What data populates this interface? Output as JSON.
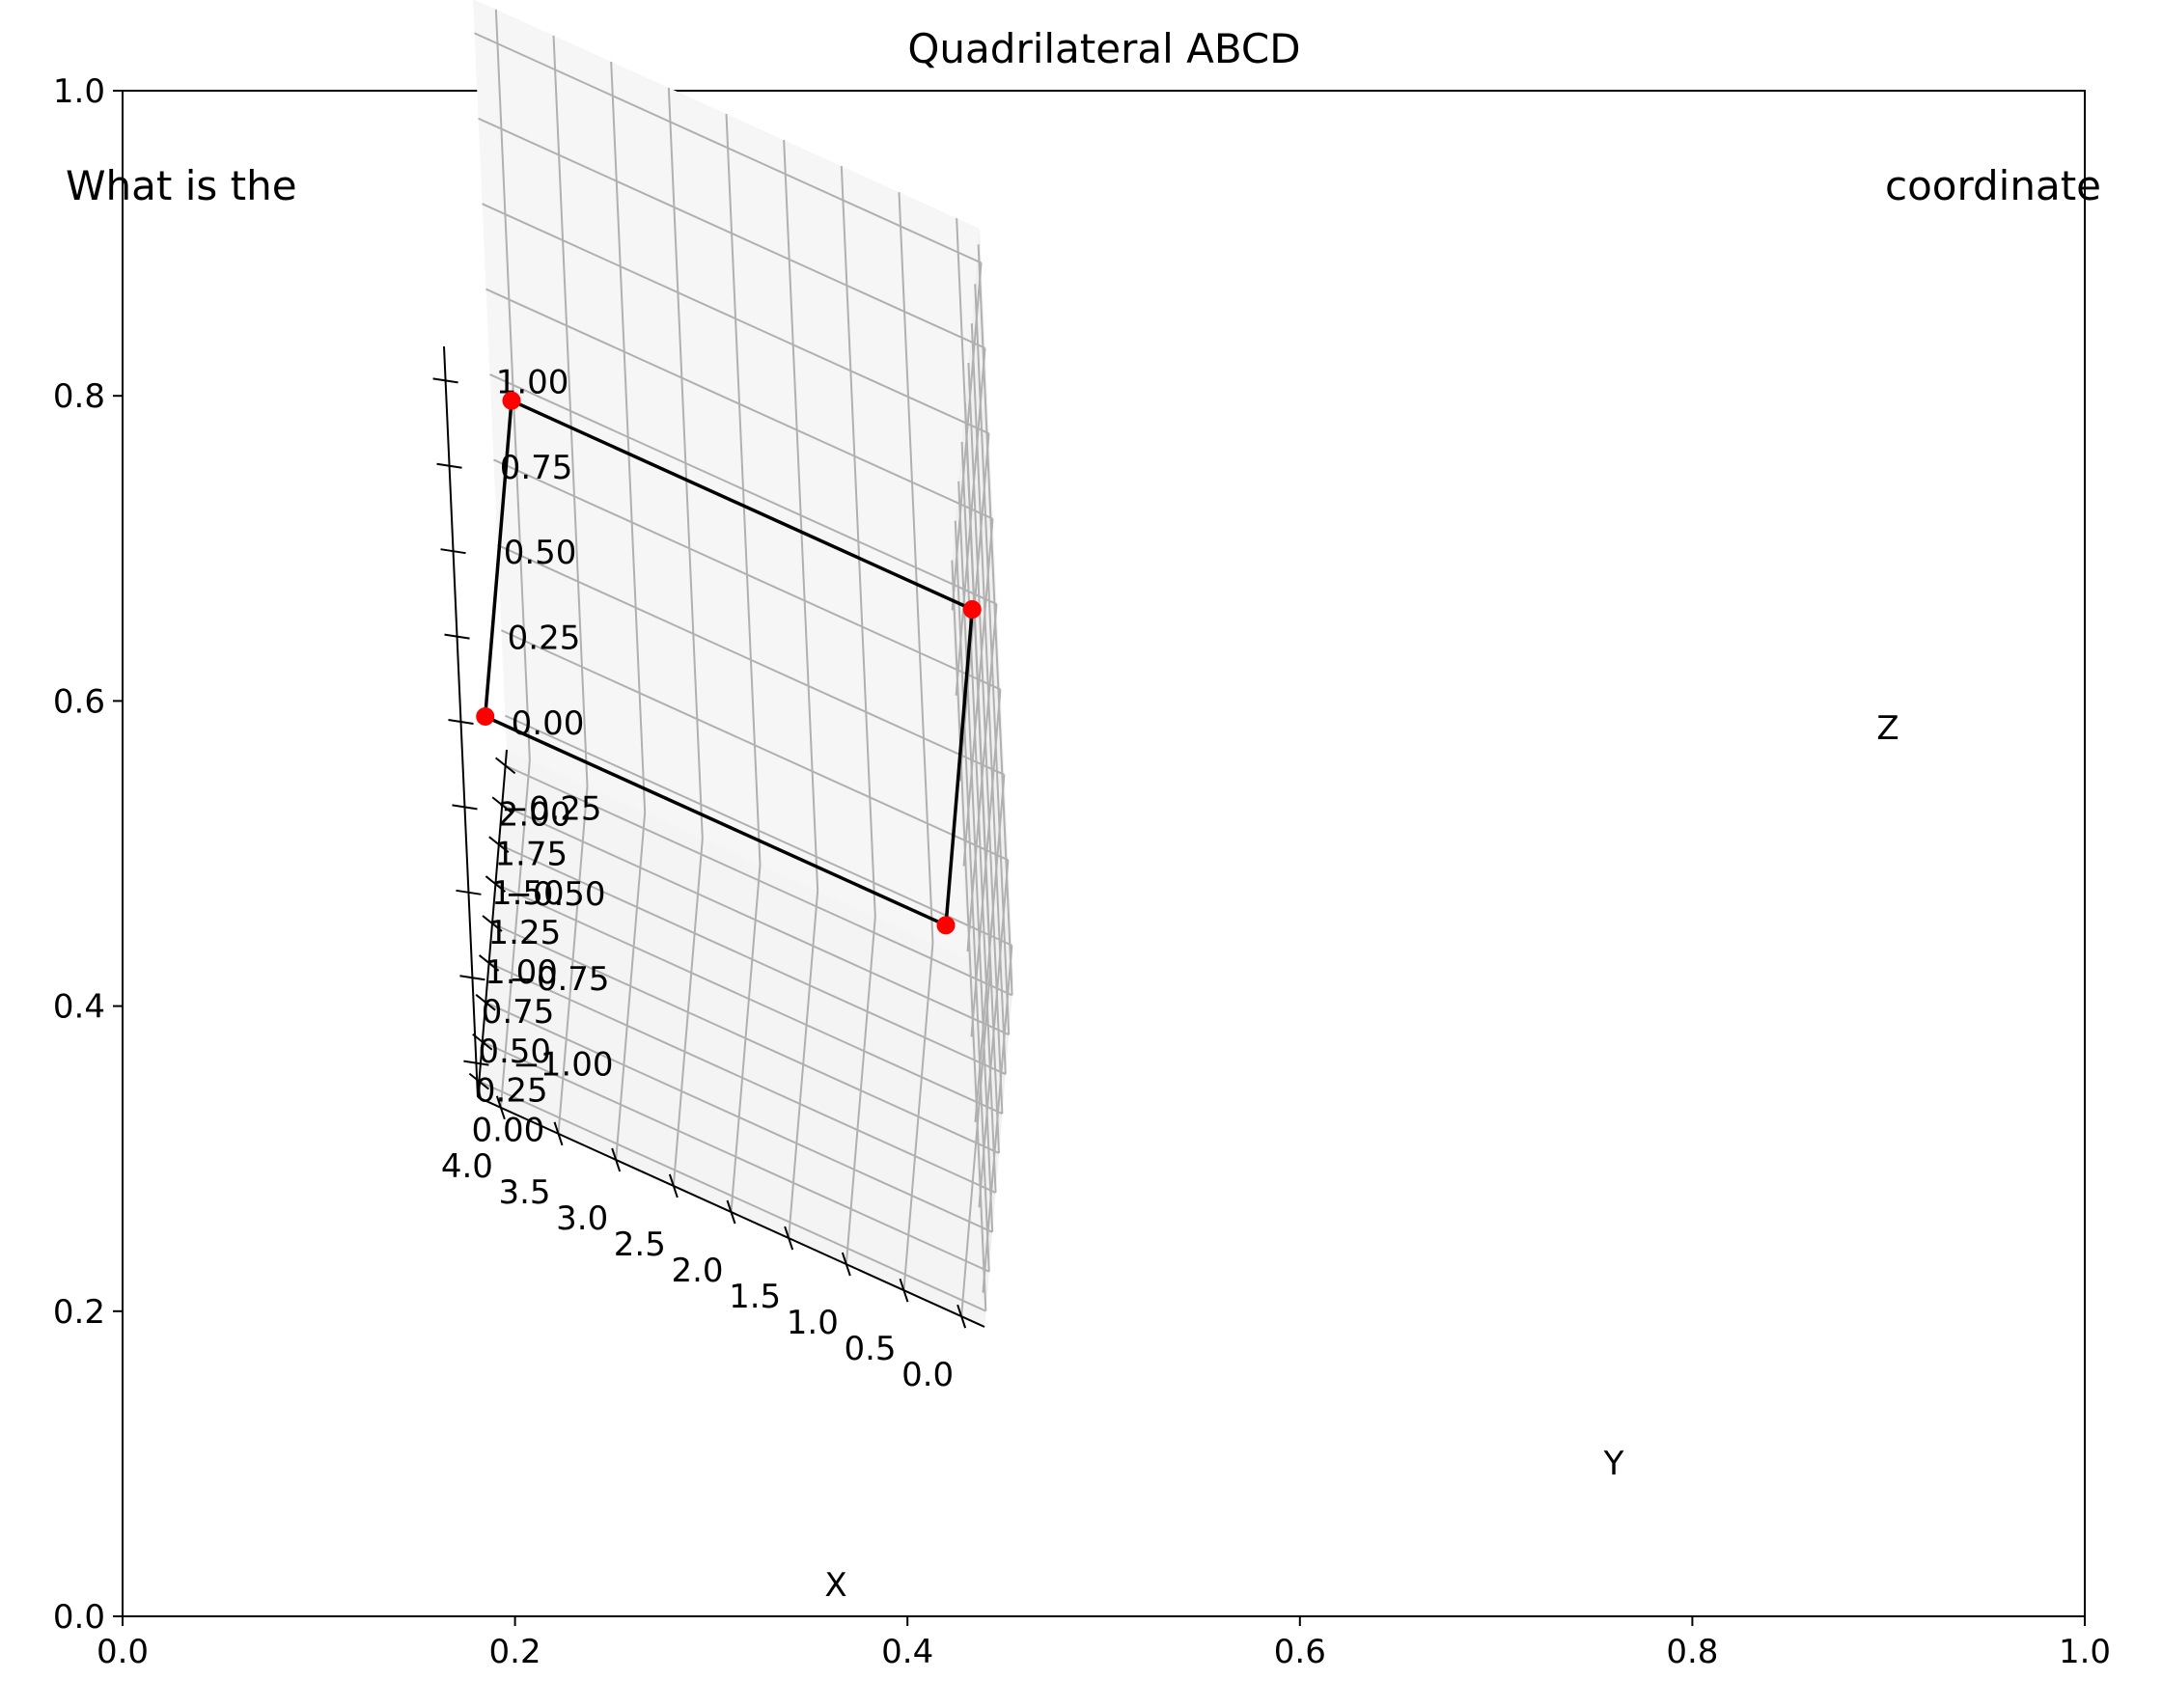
{
  "chart_data": {
    "type": "scatter",
    "title": "Quadrilateral ABCD",
    "overlay_text": {
      "left": "What is the",
      "right": "coordinate"
    },
    "axes_2d": {
      "x_ticks": [
        "0.0",
        "0.2",
        "0.4",
        "0.6",
        "0.8",
        "1.0"
      ],
      "y_ticks": [
        "0.0",
        "0.2",
        "0.4",
        "0.6",
        "0.8",
        "1.0"
      ],
      "xlim": [
        0,
        1
      ],
      "ylim": [
        0,
        1
      ]
    },
    "axes_3d": {
      "xlabel": "X",
      "ylabel": "Y",
      "zlabel": "Z",
      "xlim": [
        -0.2,
        4.2
      ],
      "ylim": [
        -0.1,
        2.1
      ],
      "zlim": [
        -1.1,
        1.1
      ],
      "x_ticks": [
        "0.0",
        "0.5",
        "1.0",
        "1.5",
        "2.0",
        "2.5",
        "3.0",
        "3.5",
        "4.0"
      ],
      "y_ticks": [
        "0.00",
        "0.25",
        "0.50",
        "0.75",
        "1.00",
        "1.25",
        "1.50",
        "1.75",
        "2.00"
      ],
      "z_ticks": [
        "−1.00",
        "−0.75",
        "−0.50",
        "−0.25",
        "0.00",
        "0.25",
        "0.50",
        "0.75",
        "1.00"
      ],
      "grid": true
    },
    "points": [
      {
        "x": 0,
        "y": 0,
        "z": 0
      },
      {
        "x": 4,
        "y": 0,
        "z": 0
      },
      {
        "x": 4,
        "y": 2,
        "z": 0
      },
      {
        "x": 0,
        "y": 2,
        "z": 0
      }
    ],
    "polygon_closed": true,
    "colors": {
      "edge": "#000000",
      "marker": "#ff0000",
      "grid": "#b0b0b0",
      "pane_floor": "#f4f4f4",
      "pane_left": "#f6f6f6",
      "pane_back": "#f0f0f0"
    }
  }
}
